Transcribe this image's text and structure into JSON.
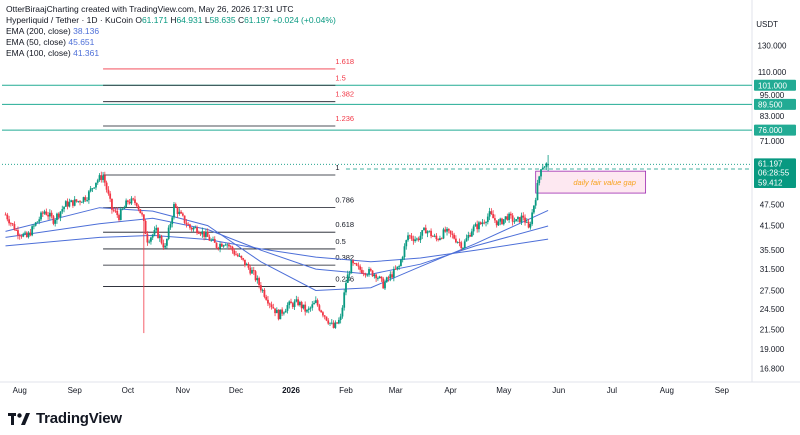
{
  "caption": "OtterBiraajCharting created with TradingView.com, May 26, 2026 17:31 UTC",
  "symbol_line": {
    "name": "Hyperliquid / Tether · 1D · KuCoin",
    "o_label": "O",
    "o": "61.171",
    "h_label": "H",
    "h": "64.931",
    "l_label": "L",
    "l": "58.635",
    "c_label": "C",
    "c": "61.197",
    "change": "+0.024 (+0.04%)"
  },
  "indicators": [
    {
      "label": "EMA (200, close)",
      "value": "38.136",
      "color": "#4d6fd8"
    },
    {
      "label": "EMA (50, close)",
      "value": "45.651",
      "color": "#4d6fd8"
    },
    {
      "label": "EMA (100, close)",
      "value": "41.361",
      "color": "#4d6fd8"
    }
  ],
  "currency": "USDT",
  "brand": "TradingView",
  "colors": {
    "up": "#089981",
    "down": "#f23645",
    "ema": "#4d6fd8",
    "teal": "#22ab94",
    "fvg_border": "#9c27b0",
    "fvg_fill": "#fde8f1",
    "fvg_text": "#f7a21b"
  },
  "chart_data": {
    "type": "candlestick",
    "y_scale": "log",
    "ylim": [
      15.6,
      138
    ],
    "y_ticks": [
      "130.000",
      "110.000",
      "95.000",
      "83.000",
      "71.000",
      "59.412",
      "47.500",
      "41.500",
      "35.500",
      "31.500",
      "27.500",
      "24.500",
      "21.500",
      "19.000",
      "16.800"
    ],
    "y_tick_values": [
      130,
      110,
      95,
      83,
      71,
      59.412,
      47.5,
      41.5,
      35.5,
      31.5,
      27.5,
      24.5,
      21.5,
      19,
      16.8
    ],
    "x_ticks": [
      {
        "label": "Aug",
        "date": "2025-08-01"
      },
      {
        "label": "Sep",
        "date": "2025-09-01"
      },
      {
        "label": "Oct",
        "date": "2025-10-01"
      },
      {
        "label": "Nov",
        "date": "2025-11-01"
      },
      {
        "label": "Dec",
        "date": "2025-12-01"
      },
      {
        "label": "2026",
        "date": "2026-01-01"
      },
      {
        "label": "Feb",
        "date": "2026-02-01"
      },
      {
        "label": "Mar",
        "date": "2026-03-01"
      },
      {
        "label": "Apr",
        "date": "2026-04-01"
      },
      {
        "label": "May",
        "date": "2026-05-01"
      },
      {
        "label": "Jun",
        "date": "2026-06-01"
      },
      {
        "label": "Jul",
        "date": "2026-07-01"
      },
      {
        "label": "Aug",
        "date": "2026-08-01"
      },
      {
        "label": "Sep",
        "date": "2026-09-01"
      }
    ],
    "date_range": [
      "2025-07-22",
      "2026-09-18"
    ],
    "close_path": [
      [
        "2025-07-24",
        44.5
      ],
      [
        "2025-07-30",
        40.2
      ],
      [
        "2025-08-05",
        38.5
      ],
      [
        "2025-08-10",
        42.0
      ],
      [
        "2025-08-15",
        45.5
      ],
      [
        "2025-08-20",
        43.0
      ],
      [
        "2025-08-27",
        47.5
      ],
      [
        "2025-09-03",
        48.5
      ],
      [
        "2025-09-08",
        50.0
      ],
      [
        "2025-09-13",
        55.0
      ],
      [
        "2025-09-17",
        57.0
      ],
      [
        "2025-09-22",
        46.0
      ],
      [
        "2025-09-26",
        44.0
      ],
      [
        "2025-10-01",
        48.5
      ],
      [
        "2025-10-06",
        48.0
      ],
      [
        "2025-10-09",
        44.0
      ],
      [
        "2025-10-12",
        38.0
      ],
      [
        "2025-10-17",
        40.0
      ],
      [
        "2025-10-22",
        36.0
      ],
      [
        "2025-10-27",
        47.0
      ],
      [
        "2025-10-31",
        44.0
      ],
      [
        "2025-11-05",
        41.0
      ],
      [
        "2025-11-10",
        40.5
      ],
      [
        "2025-11-15",
        38.5
      ],
      [
        "2025-11-20",
        36.5
      ],
      [
        "2025-11-25",
        37.5
      ],
      [
        "2025-11-30",
        35.0
      ],
      [
        "2025-12-05",
        33.0
      ],
      [
        "2025-12-10",
        31.0
      ],
      [
        "2025-12-15",
        28.0
      ],
      [
        "2025-12-20",
        25.5
      ],
      [
        "2025-12-25",
        23.5
      ],
      [
        "2025-12-30",
        25.0
      ],
      [
        "2026-01-05",
        25.5
      ],
      [
        "2026-01-10",
        24.0
      ],
      [
        "2026-01-15",
        25.5
      ],
      [
        "2026-01-20",
        23.5
      ],
      [
        "2026-01-25",
        21.7
      ],
      [
        "2026-01-29",
        23.0
      ],
      [
        "2026-02-01",
        29.0
      ],
      [
        "2026-02-04",
        32.5
      ],
      [
        "2026-02-08",
        31.5
      ],
      [
        "2026-02-13",
        31.0
      ],
      [
        "2026-02-18",
        30.5
      ],
      [
        "2026-02-22",
        28.5
      ],
      [
        "2026-02-27",
        30.5
      ],
      [
        "2026-03-03",
        32.0
      ],
      [
        "2026-03-08",
        39.0
      ],
      [
        "2026-03-13",
        38.0
      ],
      [
        "2026-03-18",
        40.5
      ],
      [
        "2026-03-24",
        38.0
      ],
      [
        "2026-03-29",
        40.0
      ],
      [
        "2026-04-03",
        38.5
      ],
      [
        "2026-04-08",
        36.5
      ],
      [
        "2026-04-13",
        40.5
      ],
      [
        "2026-04-18",
        42.0
      ],
      [
        "2026-04-23",
        44.5
      ],
      [
        "2026-04-28",
        42.0
      ],
      [
        "2026-05-03",
        44.0
      ],
      [
        "2026-05-08",
        42.5
      ],
      [
        "2026-05-12",
        44.0
      ],
      [
        "2026-05-15",
        40.5
      ],
      [
        "2026-05-19",
        50.0
      ],
      [
        "2026-05-22",
        60.5
      ],
      [
        "2026-05-26",
        61.2
      ]
    ],
    "last_candle": {
      "date": "2026-05-26",
      "open": 61.171,
      "high": 64.931,
      "low": 58.635,
      "close": 61.197
    },
    "ema_200_path": [
      [
        "2025-07-24",
        36.5
      ],
      [
        "2025-09-15",
        38.5
      ],
      [
        "2025-10-15",
        39.0
      ],
      [
        "2025-11-15",
        38.0
      ],
      [
        "2025-12-15",
        35.8
      ],
      [
        "2026-01-15",
        34.0
      ],
      [
        "2026-02-15",
        33.0
      ],
      [
        "2026-03-15",
        33.8
      ],
      [
        "2026-04-15",
        35.5
      ],
      [
        "2026-05-26",
        38.1
      ]
    ],
    "ema_100_path": [
      [
        "2025-07-24",
        38.5
      ],
      [
        "2025-09-15",
        42.0
      ],
      [
        "2025-10-15",
        43.5
      ],
      [
        "2025-11-15",
        40.5
      ],
      [
        "2025-12-15",
        35.5
      ],
      [
        "2026-01-15",
        31.5
      ],
      [
        "2026-02-15",
        30.5
      ],
      [
        "2026-03-15",
        32.5
      ],
      [
        "2026-04-15",
        36.5
      ],
      [
        "2026-05-26",
        41.4
      ]
    ],
    "ema_50_path": [
      [
        "2025-07-24",
        40.0
      ],
      [
        "2025-09-15",
        46.5
      ],
      [
        "2025-10-15",
        45.5
      ],
      [
        "2025-11-15",
        41.5
      ],
      [
        "2025-12-15",
        33.0
      ],
      [
        "2026-01-15",
        27.5
      ],
      [
        "2026-02-15",
        28.0
      ],
      [
        "2026-03-15",
        32.0
      ],
      [
        "2026-04-15",
        37.0
      ],
      [
        "2026-05-26",
        45.7
      ]
    ],
    "fib_levels": [
      {
        "label": "1.618",
        "price": 112,
        "color": "#f23645",
        "line": "#f23645"
      },
      {
        "label": "1.5",
        "price": 101,
        "color": "#f23645",
        "line": "#131722"
      },
      {
        "label": "1.382",
        "price": 91,
        "color": "#f23645",
        "line": "#131722"
      },
      {
        "label": "1.236",
        "price": 78,
        "color": "#f23645",
        "line": "#131722"
      },
      {
        "label": "1",
        "price": 57.2,
        "color": "#131722",
        "line": "#131722"
      },
      {
        "label": "0.786",
        "price": 46.5,
        "color": "#131722",
        "line": "#131722"
      },
      {
        "label": "0.618",
        "price": 39.8,
        "color": "#131722",
        "line": "#131722"
      },
      {
        "label": "0.5",
        "price": 35.8,
        "color": "#131722",
        "line": "#131722"
      },
      {
        "label": "0.382",
        "price": 32.3,
        "color": "#131722",
        "line": "#131722"
      },
      {
        "label": "0.236",
        "price": 28.2,
        "color": "#131722",
        "line": "#131722"
      }
    ],
    "fib_date_range": [
      "2025-09-17",
      "2026-01-26"
    ],
    "horizontal_lines": [
      {
        "price": 101.0,
        "label": "101.000",
        "color": "#22ab94"
      },
      {
        "price": 89.5,
        "label": "89.500",
        "color": "#22ab94"
      },
      {
        "price": 76.0,
        "label": "76.000",
        "color": "#22ab94"
      }
    ],
    "price_badges": [
      {
        "price": 61.197,
        "label": "61.197",
        "sub": "06:28:55",
        "color": "#089981"
      },
      {
        "price": 59.412,
        "label": "59.412",
        "color": "#089981"
      }
    ],
    "fvg_zone": {
      "label": "daily fair value gap",
      "date_range": [
        "2026-05-19",
        "2026-07-20"
      ],
      "price_range": [
        51.0,
        58.6
      ]
    },
    "spike_low": {
      "date": "2025-10-10",
      "price": 21.0
    }
  }
}
